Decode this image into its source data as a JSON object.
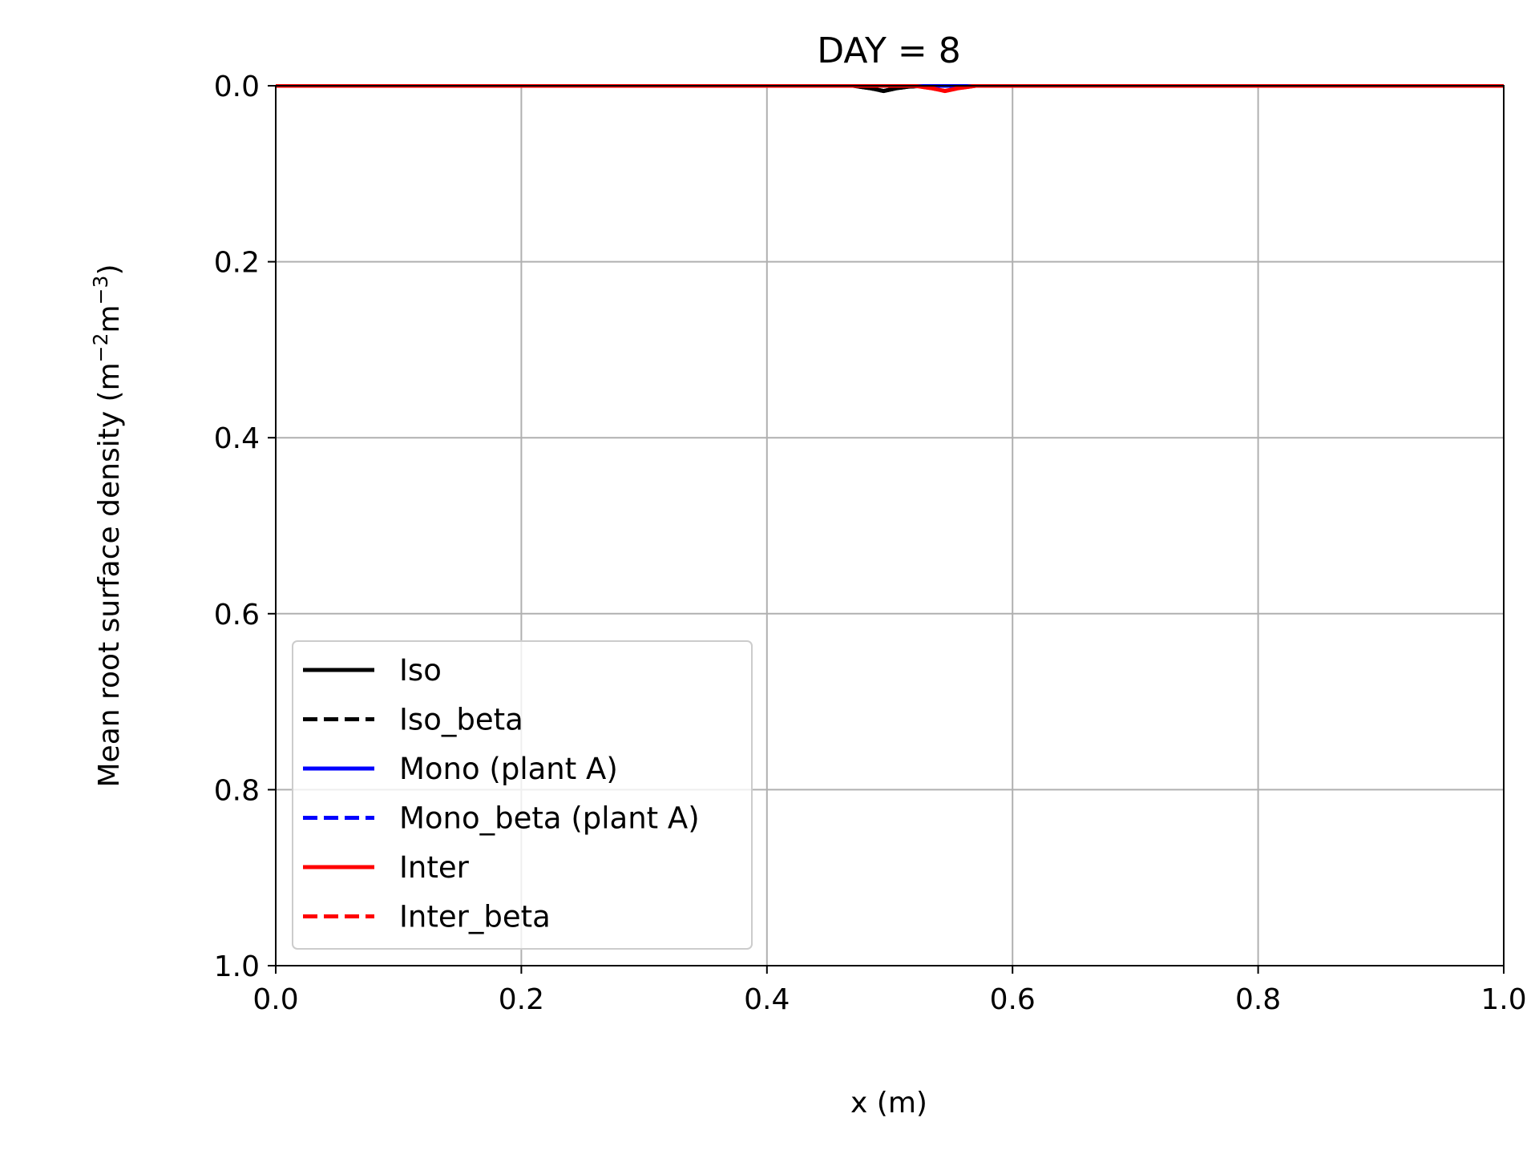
{
  "chart_data": {
    "type": "line",
    "title": "DAY = 8",
    "xlabel": "x (m)",
    "ylabel": "Mean root surface density (m⁻²m⁻³)",
    "xlim": [
      0.0,
      1.0
    ],
    "ylim": [
      0.0,
      1.0
    ],
    "y_inverted": true,
    "grid": true,
    "legend_position": "lower-left",
    "x_ticks": [
      "0.0",
      "0.2",
      "0.4",
      "0.6",
      "0.8",
      "1.0"
    ],
    "y_ticks": [
      "0.0",
      "0.2",
      "0.4",
      "0.6",
      "0.8",
      "1.0"
    ],
    "series": [
      {
        "name": "Iso",
        "color": "#000000",
        "dashed": false,
        "x": [
          0.0,
          0.47,
          0.485,
          0.495,
          0.505,
          0.515,
          0.53,
          1.0
        ],
        "y": [
          0.0,
          0.0,
          0.003,
          0.006,
          0.003,
          0.001,
          0.0,
          0.0
        ]
      },
      {
        "name": "Iso_beta",
        "color": "#000000",
        "dashed": true,
        "x": [
          0.0,
          0.47,
          0.485,
          0.495,
          0.505,
          0.515,
          0.53,
          1.0
        ],
        "y": [
          0.0,
          0.0,
          0.003,
          0.006,
          0.003,
          0.001,
          0.0,
          0.0
        ]
      },
      {
        "name": "Mono (plant A)",
        "color": "#0000ff",
        "dashed": false,
        "x": [
          0.0,
          1.0
        ],
        "y": [
          0.0,
          0.0
        ]
      },
      {
        "name": "Mono_beta (plant A)",
        "color": "#0000ff",
        "dashed": true,
        "x": [
          0.0,
          1.0
        ],
        "y": [
          0.0,
          0.0
        ]
      },
      {
        "name": "Inter",
        "color": "#ff0000",
        "dashed": false,
        "x": [
          0.0,
          0.52,
          0.535,
          0.545,
          0.555,
          0.57,
          1.0
        ],
        "y": [
          0.0,
          0.0,
          0.003,
          0.006,
          0.003,
          0.0,
          0.0
        ]
      },
      {
        "name": "Inter_beta",
        "color": "#ff0000",
        "dashed": true,
        "x": [
          0.0,
          0.52,
          0.535,
          0.545,
          0.555,
          0.57,
          1.0
        ],
        "y": [
          0.0,
          0.0,
          0.003,
          0.006,
          0.003,
          0.0,
          0.0
        ]
      }
    ]
  }
}
